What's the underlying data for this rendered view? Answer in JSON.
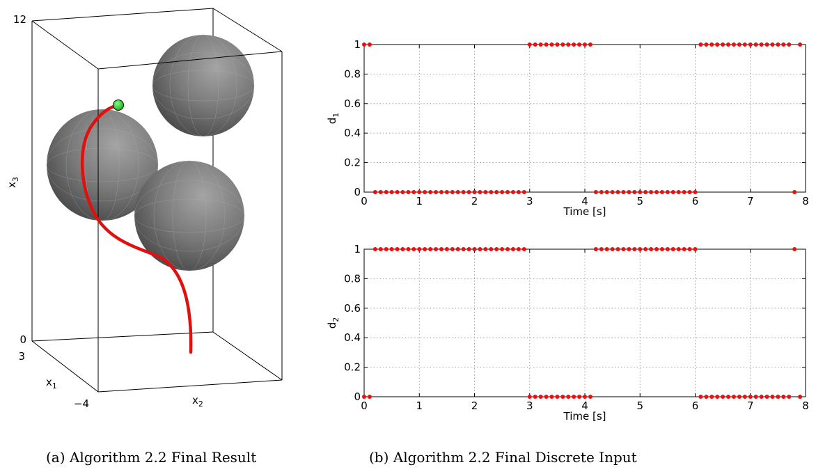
{
  "chart_data": [
    {
      "type": "3d-scene",
      "zlabel": "x3",
      "xlabel": "x1",
      "ylabel": "x2",
      "z_ticks": [
        "12",
        "0"
      ],
      "x1_ticks": [
        "3",
        "−4"
      ],
      "obstacles": 3,
      "colors": {
        "spheres": "#6e6e6e",
        "trajectory": "#e0100f",
        "start_marker": "#22d822"
      },
      "caption": "(a) Algorithm 2.2 Final Result"
    },
    {
      "type": "scatter",
      "ylabel": "d1",
      "xlabel": "Time [s]",
      "xlim": [
        0,
        8
      ],
      "ylim": [
        0,
        1
      ],
      "x_ticks": [
        "0",
        "1",
        "2",
        "3",
        "4",
        "5",
        "6",
        "7",
        "8"
      ],
      "y_ticks": [
        "0",
        "0.2",
        "0.4",
        "0.6",
        "0.8",
        "1"
      ],
      "grid": true,
      "color": "#e81010",
      "x": [
        0,
        0.1,
        0.2,
        0.3,
        0.4,
        0.5,
        0.6,
        0.7,
        0.8,
        0.9,
        1.0,
        1.1,
        1.2,
        1.3,
        1.4,
        1.5,
        1.6,
        1.7,
        1.8,
        1.9,
        2.0,
        2.1,
        2.2,
        2.3,
        2.4,
        2.5,
        2.6,
        2.7,
        2.8,
        2.9,
        3.0,
        3.1,
        3.2,
        3.3,
        3.4,
        3.5,
        3.6,
        3.7,
        3.8,
        3.9,
        4.0,
        4.1,
        4.2,
        4.3,
        4.4,
        4.5,
        4.6,
        4.7,
        4.8,
        4.9,
        5.0,
        5.1,
        5.2,
        5.3,
        5.4,
        5.5,
        5.6,
        5.7,
        5.8,
        5.9,
        6.0,
        6.1,
        6.2,
        6.3,
        6.4,
        6.5,
        6.6,
        6.7,
        6.8,
        6.9,
        7.0,
        7.1,
        7.2,
        7.3,
        7.4,
        7.5,
        7.6,
        7.7,
        7.8,
        7.9
      ],
      "y": [
        1,
        1,
        0,
        0,
        0,
        0,
        0,
        0,
        0,
        0,
        0,
        0,
        0,
        0,
        0,
        0,
        0,
        0,
        0,
        0,
        0,
        0,
        0,
        0,
        0,
        0,
        0,
        0,
        0,
        0,
        1,
        1,
        1,
        1,
        1,
        1,
        1,
        1,
        1,
        1,
        1,
        1,
        0,
        0,
        0,
        0,
        0,
        0,
        0,
        0,
        0,
        0,
        0,
        0,
        0,
        0,
        0,
        0,
        0,
        0,
        0,
        1,
        1,
        1,
        1,
        1,
        1,
        1,
        1,
        1,
        1,
        1,
        1,
        1,
        1,
        1,
        1,
        1,
        0,
        1
      ],
      "caption": "(b) Algorithm 2.2 Final Discrete Input"
    },
    {
      "type": "scatter",
      "ylabel": "d2",
      "xlabel": "Time [s]",
      "xlim": [
        0,
        8
      ],
      "ylim": [
        0,
        1
      ],
      "x_ticks": [
        "0",
        "1",
        "2",
        "3",
        "4",
        "5",
        "6",
        "7",
        "8"
      ],
      "y_ticks": [
        "0",
        "0.2",
        "0.4",
        "0.6",
        "0.8",
        "1"
      ],
      "grid": true,
      "color": "#e81010",
      "x": [
        0,
        0.1,
        0.2,
        0.3,
        0.4,
        0.5,
        0.6,
        0.7,
        0.8,
        0.9,
        1.0,
        1.1,
        1.2,
        1.3,
        1.4,
        1.5,
        1.6,
        1.7,
        1.8,
        1.9,
        2.0,
        2.1,
        2.2,
        2.3,
        2.4,
        2.5,
        2.6,
        2.7,
        2.8,
        2.9,
        3.0,
        3.1,
        3.2,
        3.3,
        3.4,
        3.5,
        3.6,
        3.7,
        3.8,
        3.9,
        4.0,
        4.1,
        4.2,
        4.3,
        4.4,
        4.5,
        4.6,
        4.7,
        4.8,
        4.9,
        5.0,
        5.1,
        5.2,
        5.3,
        5.4,
        5.5,
        5.6,
        5.7,
        5.8,
        5.9,
        6.0,
        6.1,
        6.2,
        6.3,
        6.4,
        6.5,
        6.6,
        6.7,
        6.8,
        6.9,
        7.0,
        7.1,
        7.2,
        7.3,
        7.4,
        7.5,
        7.6,
        7.7,
        7.8,
        7.9
      ],
      "y": [
        0,
        0,
        1,
        1,
        1,
        1,
        1,
        1,
        1,
        1,
        1,
        1,
        1,
        1,
        1,
        1,
        1,
        1,
        1,
        1,
        1,
        1,
        1,
        1,
        1,
        1,
        1,
        1,
        1,
        1,
        0,
        0,
        0,
        0,
        0,
        0,
        0,
        0,
        0,
        0,
        0,
        0,
        1,
        1,
        1,
        1,
        1,
        1,
        1,
        1,
        1,
        1,
        1,
        1,
        1,
        1,
        1,
        1,
        1,
        1,
        1,
        0,
        0,
        0,
        0,
        0,
        0,
        0,
        0,
        0,
        0,
        0,
        0,
        0,
        0,
        0,
        0,
        0,
        1,
        0
      ]
    }
  ]
}
